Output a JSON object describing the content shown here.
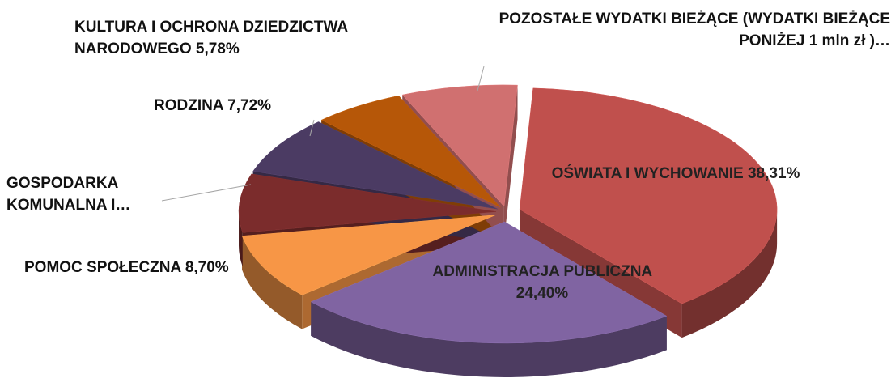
{
  "chart_data": {
    "type": "pie3d",
    "categories": [
      "OŚWIATA I WYCHOWANIE",
      "ADMINISTRACJA PUBLICZNA",
      "POMOC SPOŁECZNA",
      "GOSPODARKA KOMUNALNA I…",
      "RODZINA",
      "KULTURA I OCHRONA DZIEDZICTWA NARODOWEGO",
      "POZOSTAŁE WYDATKI BIEŻĄCE (WYDATKI BIEŻĄCE PONIŻEJ 1 mln zł )…"
    ],
    "values": [
      38.31,
      24.4,
      8.7,
      7.79,
      7.72,
      5.78,
      7.3
    ],
    "value_labels": [
      "38,31%",
      "24,40%",
      "8,70%",
      null,
      "7,72%",
      "5,78%",
      null
    ],
    "colors": [
      "#c0504d",
      "#8064a2",
      "#f79646",
      "#7b2c2c",
      "#4b3b63",
      "#b65708",
      "#d07070"
    ]
  }
}
